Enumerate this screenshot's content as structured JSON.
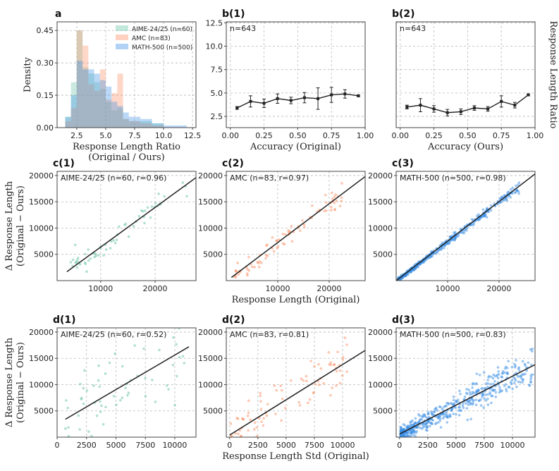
{
  "chart_data": [
    {
      "id": "a",
      "type": "histogram",
      "panel_label": "a",
      "xlabel": "Response Length Ratio\n(Original / Ours)",
      "ylabel": "Density",
      "xlim": [
        0.8,
        12.8
      ],
      "ylim": [
        0,
        0.49
      ],
      "xticks": [
        2.5,
        5.0,
        7.5,
        10.0,
        12.5
      ],
      "xtick_labels": [
        "2.5",
        "5.0",
        "7.5",
        "10.0",
        "12.5"
      ],
      "yticks": [
        0,
        0.15,
        0.3,
        0.45
      ],
      "ytick_labels": [
        "0.00",
        "0.15",
        "0.30",
        "0.45"
      ],
      "legend_position": "top-right",
      "series": [
        {
          "name": "AIME-24/25 (n=60)",
          "color": "#66c2a5",
          "bin_edges": [
            1.5,
            2.0,
            2.5,
            3.0,
            3.5,
            4.0,
            4.5,
            5.0,
            5.5,
            6.0,
            6.5,
            7.0,
            8.0,
            9.0,
            10.0
          ],
          "density": [
            0.05,
            0.21,
            0.45,
            0.28,
            0.25,
            0.21,
            0.18,
            0.12,
            0.08,
            0.09,
            0.04,
            0.03,
            0.03,
            0.02
          ]
        },
        {
          "name": "AMC (n=83)",
          "color": "#fc8d62",
          "bin_edges": [
            1.5,
            2.0,
            2.5,
            3.0,
            3.5,
            4.0,
            4.5,
            5.0,
            5.5,
            6.0,
            6.5,
            7.0,
            8.0,
            9.0,
            10.0
          ],
          "density": [
            0.03,
            0.09,
            0.45,
            0.38,
            0.2,
            0.17,
            0.27,
            0.13,
            0.16,
            0.25,
            0.04,
            0.03,
            0.02,
            0.01
          ]
        },
        {
          "name": "MATH-500 (n=500)",
          "color": "#3b8fe6",
          "bin_edges": [
            1.5,
            2.0,
            2.5,
            3.0,
            3.5,
            4.0,
            4.5,
            5.0,
            5.5,
            6.0,
            6.5,
            7.0,
            8.0,
            9.0,
            10.0,
            11.0,
            12.0
          ],
          "density": [
            0.05,
            0.15,
            0.31,
            0.27,
            0.27,
            0.25,
            0.22,
            0.19,
            0.12,
            0.1,
            0.07,
            0.05,
            0.04,
            0.02,
            0.01,
            0.01
          ]
        }
      ]
    },
    {
      "id": "b1",
      "type": "line",
      "panel_label": "b(1)",
      "xlabel": "Accuracy (Original)",
      "ylabel": "",
      "annotation": "n=643",
      "xlim": [
        -0.03,
        1.0
      ],
      "ylim": [
        1.3,
        12.6
      ],
      "xticks": [
        0,
        0.25,
        0.5,
        0.75,
        1.0
      ],
      "xtick_labels": [
        "0.00",
        "0.25",
        "0.50",
        "0.75",
        "1.00"
      ],
      "yticks": [
        2.5,
        5.0,
        7.5,
        10.0,
        12.5
      ],
      "ytick_labels": [
        "2.5",
        "5.0",
        "7.5",
        "10.0",
        "12.5"
      ],
      "x": [
        0.05,
        0.15,
        0.25,
        0.35,
        0.45,
        0.55,
        0.65,
        0.75,
        0.85,
        0.95
      ],
      "y": [
        3.4,
        4.1,
        3.9,
        4.4,
        4.2,
        4.5,
        4.4,
        4.8,
        4.9,
        4.7
      ],
      "yerr": [
        0.15,
        0.6,
        0.45,
        0.5,
        0.35,
        0.55,
        1.15,
        0.8,
        0.45,
        0.1
      ]
    },
    {
      "id": "b2",
      "type": "line",
      "panel_label": "b(2)",
      "xlabel": "Accuracy (Ours)",
      "ylabel": "Response Length Ratio\n(Original / Ours)",
      "annotation": "n=643",
      "xlim": [
        -0.03,
        1.0
      ],
      "ylim": [
        1.3,
        12.6
      ],
      "xticks": [
        0,
        0.25,
        0.5,
        0.75,
        1.0
      ],
      "xtick_labels": [
        "0.00",
        "0.25",
        "0.50",
        "0.75",
        "1.00"
      ],
      "yticks": [],
      "ytick_labels": [],
      "x": [
        0.05,
        0.15,
        0.25,
        0.35,
        0.45,
        0.55,
        0.65,
        0.75,
        0.85,
        0.95
      ],
      "y": [
        3.5,
        3.7,
        3.3,
        2.9,
        3.0,
        3.4,
        3.3,
        4.1,
        3.7,
        4.8
      ],
      "yerr": [
        0.2,
        0.7,
        0.35,
        0.35,
        0.3,
        0.25,
        0.25,
        0.6,
        0.3,
        0.1
      ]
    },
    {
      "id": "c1",
      "type": "scatter",
      "panel_label": "c(1)",
      "annotation": "AIME-24/25  (n=60, r=0.96)",
      "color": "#66c2a5",
      "xlabel": "",
      "ylabel": "Δ Response Length\n(Original − Ours)",
      "xlim": [
        2000,
        27500
      ],
      "ylim": [
        0,
        20800
      ],
      "xticks": [
        10000,
        20000
      ],
      "xtick_labels": [
        "10000",
        "20000"
      ],
      "yticks": [
        5000,
        10000,
        15000,
        20000
      ],
      "ytick_labels": [
        "5000",
        "10000",
        "15000",
        "20000"
      ],
      "fit": [
        [
          3800,
          1700
        ],
        [
          27500,
          19600
        ]
      ],
      "points_seed": 11,
      "n_points": 60,
      "x_range": [
        3800,
        26000
      ],
      "slope": 0.75,
      "intercept": -1100,
      "noise": 1100
    },
    {
      "id": "c2",
      "type": "scatter",
      "panel_label": "c(2)",
      "annotation": "AMC  (n=83, r=0.97)",
      "color": "#fc8d62",
      "xlabel": "Response Length (Original)",
      "ylabel": "",
      "xlim": [
        0,
        27000
      ],
      "ylim": [
        0,
        20800
      ],
      "xticks": [
        10000,
        20000
      ],
      "xtick_labels": [
        "10000",
        "20000"
      ],
      "yticks": [
        5000,
        10000,
        15000,
        20000
      ],
      "ytick_labels": [
        "5000",
        "10000",
        "15000",
        "20000"
      ],
      "fit": [
        [
          1000,
          600
        ],
        [
          27000,
          19800
        ]
      ],
      "points_seed": 23,
      "n_points": 83,
      "x_range": [
        1000,
        22500
      ],
      "slope": 0.74,
      "intercept": -150,
      "noise": 900
    },
    {
      "id": "c3",
      "type": "scatter",
      "panel_label": "c(3)",
      "annotation": "MATH-500  (n=500, r=0.98)",
      "color": "#3b8fe6",
      "xlabel": "",
      "ylabel": "",
      "xlim": [
        0,
        27000
      ],
      "ylim": [
        0,
        20800
      ],
      "xticks": [
        10000,
        20000
      ],
      "xtick_labels": [
        "10000",
        "20000"
      ],
      "yticks": [
        5000,
        10000,
        15000,
        20000
      ],
      "ytick_labels": [
        "5000",
        "10000",
        "15000",
        "20000"
      ],
      "fit": [
        [
          0,
          0
        ],
        [
          27000,
          20300
        ]
      ],
      "points_seed": 37,
      "n_points": 500,
      "x_range": [
        400,
        24000
      ],
      "slope": 0.75,
      "intercept": -150,
      "noise": 500,
      "skew": 2.2
    },
    {
      "id": "d1",
      "type": "scatter",
      "panel_label": "d(1)",
      "annotation": "AIME-24/25  (n=60, r=0.52)",
      "color": "#66c2a5",
      "xlabel": "",
      "ylabel": "Δ Response Length\n(Original − Ours)",
      "xlim": [
        0,
        11800
      ],
      "ylim": [
        0,
        20800
      ],
      "xticks": [
        0,
        2500,
        5000,
        7500,
        10000
      ],
      "xtick_labels": [
        "0",
        "2500",
        "5000",
        "7500",
        "10000"
      ],
      "yticks": [
        5000,
        10000,
        15000,
        20000
      ],
      "ytick_labels": [
        "5000",
        "10000",
        "15000",
        "20000"
      ],
      "fit": [
        [
          700,
          3400
        ],
        [
          11200,
          17200
        ]
      ],
      "points_seed": 51,
      "n_points": 60,
      "x_range": [
        600,
        10800
      ],
      "slope": 1.3,
      "intercept": 2500,
      "noise": 3800
    },
    {
      "id": "d2",
      "type": "scatter",
      "panel_label": "d(2)",
      "annotation": "AMC  (n=83, r=0.81)",
      "color": "#fc8d62",
      "xlabel": "Response Length Std (Original)",
      "ylabel": "",
      "xlim": [
        -300,
        12000
      ],
      "ylim": [
        0,
        20800
      ],
      "xticks": [
        0,
        2500,
        5000,
        7500,
        10000
      ],
      "xtick_labels": [
        "0",
        "2500",
        "5000",
        "7500",
        "10000"
      ],
      "yticks": [
        5000,
        10000,
        15000,
        20000
      ],
      "ytick_labels": [
        "5000",
        "10000",
        "15000",
        "20000"
      ],
      "fit": [
        [
          0,
          400
        ],
        [
          12000,
          16500
        ]
      ],
      "points_seed": 67,
      "n_points": 83,
      "x_range": [
        100,
        10500
      ],
      "slope": 1.35,
      "intercept": 400,
      "noise": 2600
    },
    {
      "id": "d3",
      "type": "scatter",
      "panel_label": "d(3)",
      "annotation": "MATH-500  (n=500, r=0.83)",
      "color": "#3b8fe6",
      "xlabel": "",
      "ylabel": "",
      "xlim": [
        -300,
        12000
      ],
      "ylim": [
        0,
        20800
      ],
      "xticks": [
        0,
        2500,
        5000,
        7500,
        10000
      ],
      "xtick_labels": [
        "0",
        "2500",
        "5000",
        "7500",
        "10000"
      ],
      "yticks": [
        5000,
        10000,
        15000,
        20000
      ],
      "ytick_labels": [
        "5000",
        "10000",
        "15000",
        "20000"
      ],
      "fit": [
        [
          0,
          600
        ],
        [
          12000,
          13800
        ]
      ],
      "points_seed": 83,
      "n_points": 500,
      "x_range": [
        100,
        11800
      ],
      "slope": 1.1,
      "intercept": 500,
      "noise": 2000,
      "skew": 1.6
    }
  ]
}
